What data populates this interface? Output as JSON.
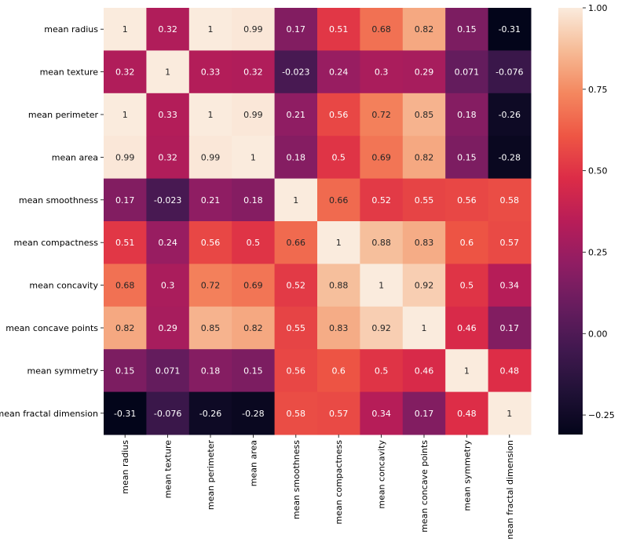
{
  "chart_data": {
    "type": "heatmap",
    "title": "",
    "xlabel": "",
    "ylabel": "",
    "colormap": "rocket",
    "vmin": -0.31,
    "vmax": 1.0,
    "labels": [
      "mean radius",
      "mean texture",
      "mean perimeter",
      "mean area",
      "mean smoothness",
      "mean compactness",
      "mean concavity",
      "mean concave points",
      "mean symmetry",
      "mean fractal dimension"
    ],
    "values": [
      [
        1,
        0.32,
        1,
        0.99,
        0.17,
        0.51,
        0.68,
        0.82,
        0.15,
        -0.31
      ],
      [
        0.32,
        1,
        0.33,
        0.32,
        -0.023,
        0.24,
        0.3,
        0.29,
        0.071,
        -0.076
      ],
      [
        1,
        0.33,
        1,
        0.99,
        0.21,
        0.56,
        0.72,
        0.85,
        0.18,
        -0.26
      ],
      [
        0.99,
        0.32,
        0.99,
        1,
        0.18,
        0.5,
        0.69,
        0.82,
        0.15,
        -0.28
      ],
      [
        0.17,
        -0.023,
        0.21,
        0.18,
        1,
        0.66,
        0.52,
        0.55,
        0.56,
        0.58
      ],
      [
        0.51,
        0.24,
        0.56,
        0.5,
        0.66,
        1,
        0.88,
        0.83,
        0.6,
        0.57
      ],
      [
        0.68,
        0.3,
        0.72,
        0.69,
        0.52,
        0.88,
        1,
        0.92,
        0.5,
        0.34
      ],
      [
        0.82,
        0.29,
        0.85,
        0.82,
        0.55,
        0.83,
        0.92,
        1,
        0.46,
        0.17
      ],
      [
        0.15,
        0.071,
        0.18,
        0.15,
        0.56,
        0.6,
        0.5,
        0.46,
        1,
        0.48
      ],
      [
        -0.31,
        -0.076,
        -0.26,
        -0.28,
        0.58,
        0.57,
        0.34,
        0.17,
        0.48,
        1
      ]
    ],
    "colorbar_ticks": [
      1.0,
      0.75,
      0.5,
      0.25,
      0.0,
      -0.25
    ],
    "colorbar_tick_labels": [
      "1.00",
      "0.75",
      "0.50",
      "0.25",
      "0.00",
      "−0.25"
    ],
    "grid": false,
    "legend": "colorbar-right"
  }
}
